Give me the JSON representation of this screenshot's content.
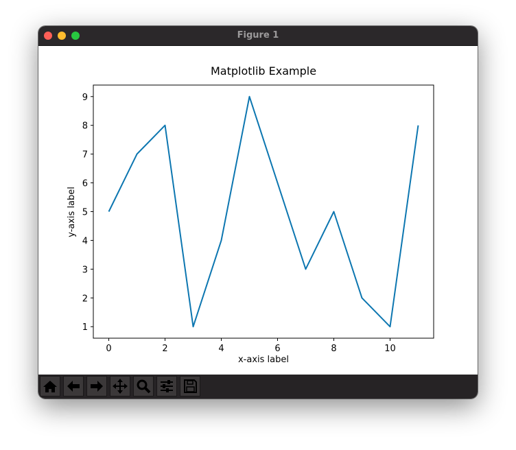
{
  "window": {
    "title": "Figure 1"
  },
  "chart_data": {
    "type": "line",
    "title": "Matplotlib Example",
    "x_label": "x-axis label",
    "y_label": "y-axis label",
    "x": [
      0,
      1,
      2,
      3,
      4,
      5,
      6,
      7,
      8,
      9,
      10,
      11
    ],
    "values": [
      5,
      7,
      8,
      1,
      4,
      9,
      6,
      3,
      5,
      2,
      1,
      8
    ],
    "color": "#0c76b0",
    "xlim": [
      -0.55,
      11.55
    ],
    "ylim": [
      0.6,
      9.4
    ],
    "xticks": [
      0,
      2,
      4,
      6,
      8,
      10
    ],
    "yticks": [
      1,
      2,
      3,
      4,
      5,
      6,
      7,
      8,
      9
    ]
  }
}
